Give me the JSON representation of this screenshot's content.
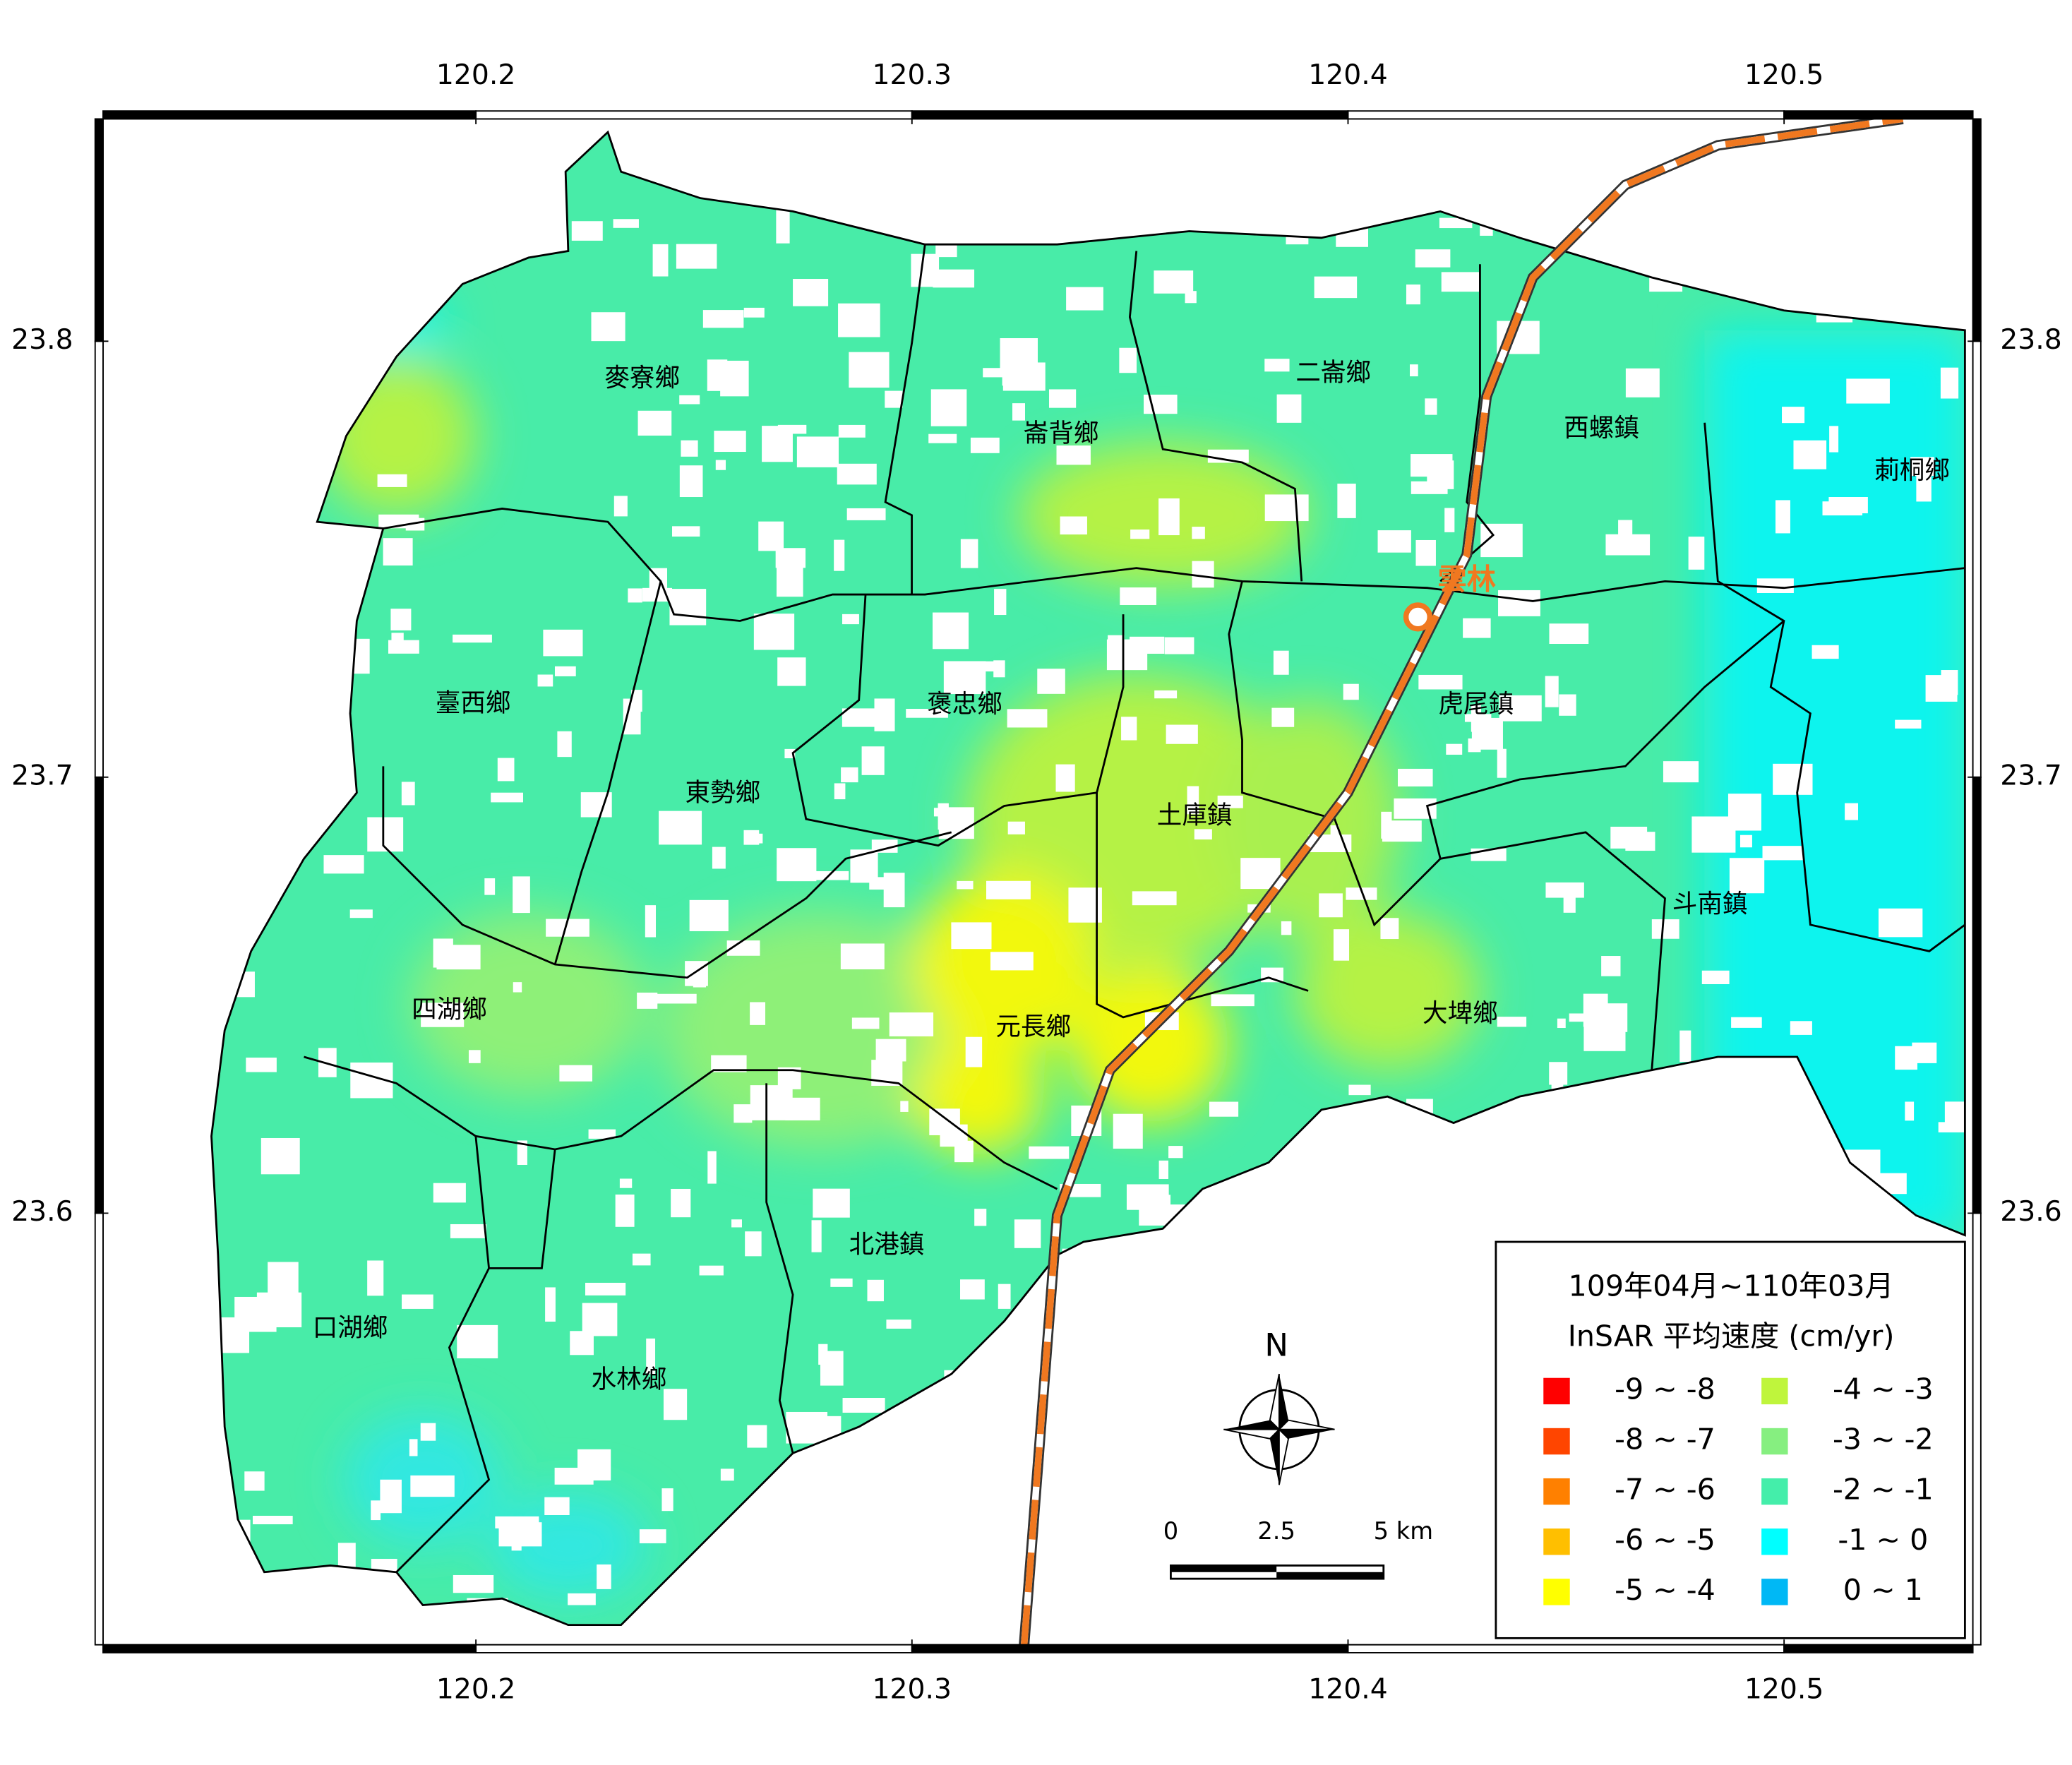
{
  "map": {
    "xticks": [
      120.2,
      120.3,
      120.4,
      120.5
    ],
    "yticks": [
      23.8,
      23.7,
      23.6
    ],
    "xlim": [
      120.1145,
      120.5433
    ],
    "ylim": [
      23.501,
      23.851
    ],
    "townships": [
      "麥寮鄉",
      "崙背鄉",
      "二崙鄉",
      "西螺鎮",
      "莿桐鄉",
      "臺西鄉",
      "褒忠鄉",
      "虎尾鎮",
      "東勢鄉",
      "土庫鎮",
      "斗南鎮",
      "四湖鄉",
      "元長鄉",
      "大埤鄉",
      "北港鎮",
      "口湖鄉",
      "水林鄉"
    ],
    "station": "雲林",
    "north": "N",
    "scale_labels": [
      "0",
      "2.5",
      "5 km"
    ]
  },
  "legend": {
    "title": [
      "109年04月~110年03月",
      "InSAR 平均速度 (cm/yr)"
    ],
    "items": [
      {
        "label": "-9 ~ -8",
        "color": "#ff0000"
      },
      {
        "label": "-8 ~ -7",
        "color": "#ff4500"
      },
      {
        "label": "-7 ~ -6",
        "color": "#ff8000"
      },
      {
        "label": "-6 ~ -5",
        "color": "#ffbf00"
      },
      {
        "label": "-5 ~ -4",
        "color": "#ffff00"
      },
      {
        "label": "-4 ~ -3",
        "color": "#bff53c"
      },
      {
        "label": "-3 ~ -2",
        "color": "#86ef80"
      },
      {
        "label": "-2 ~ -1",
        "color": "#44eeaa"
      },
      {
        "label": "-1 ~ 0",
        "color": "#00ffff"
      },
      {
        "label": "0 ~ 1",
        "color": "#00b8f5"
      }
    ]
  }
}
